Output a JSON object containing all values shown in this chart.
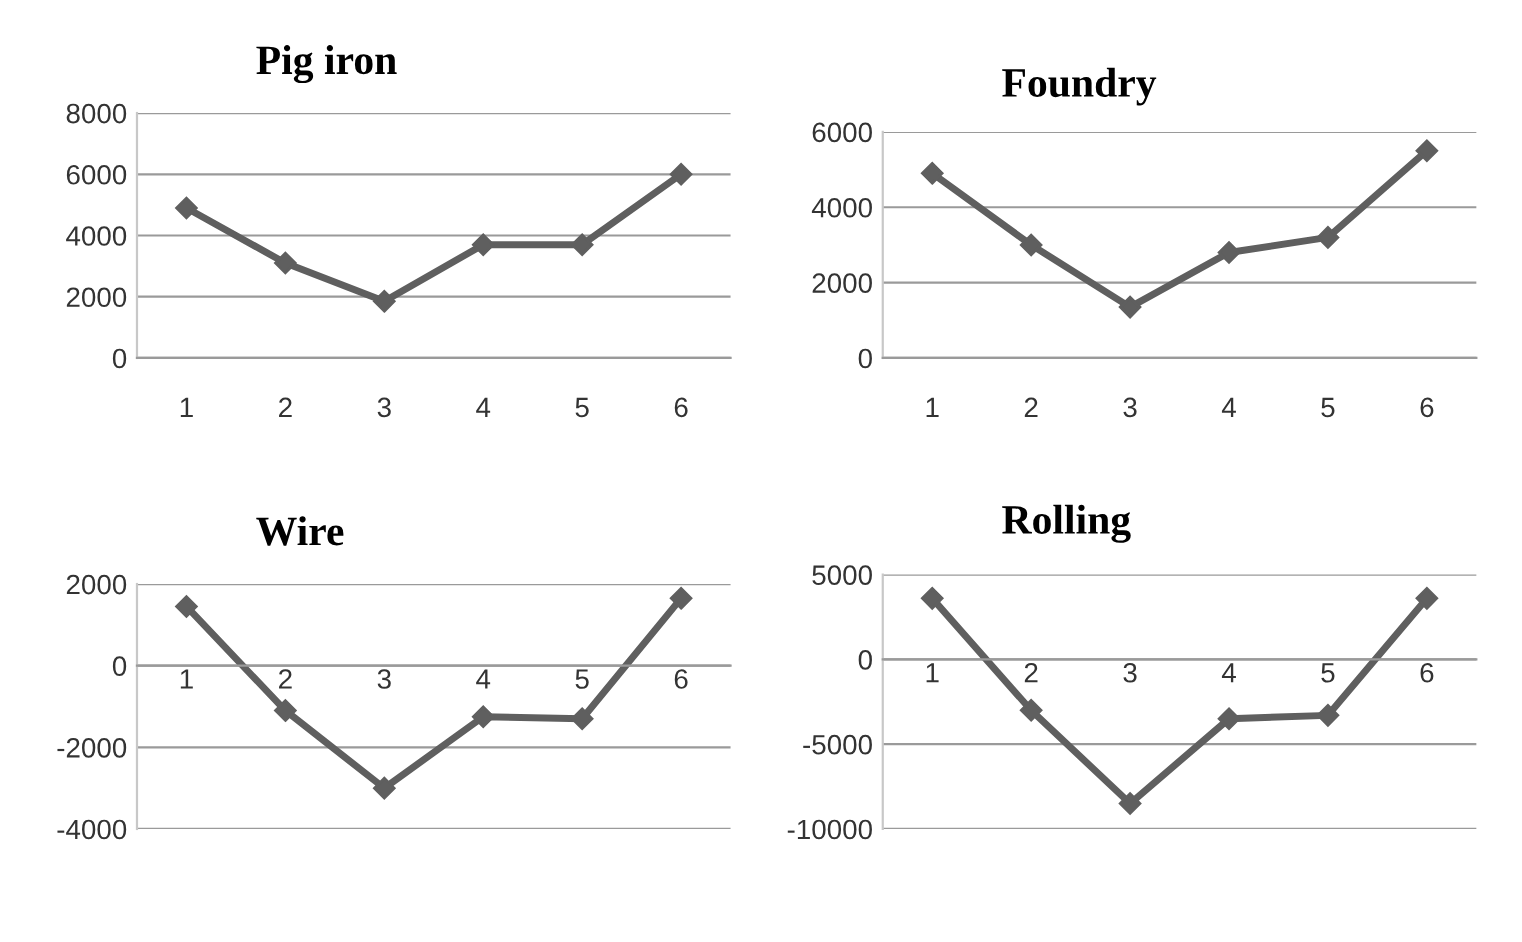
{
  "chart_data": [
    {
      "type": "line",
      "title": "Pig iron",
      "categories": [
        "1",
        "2",
        "3",
        "4",
        "5",
        "6"
      ],
      "series": [
        {
          "color": "#5f5f5f",
          "values": [
            4900,
            3100,
            1850,
            3700,
            3700,
            6000
          ]
        }
      ],
      "ylim": [
        0,
        8000
      ],
      "yticks": [
        0,
        2000,
        4000,
        6000,
        8000
      ],
      "grid": "y",
      "marker": "diamond",
      "line_style": "solid"
    },
    {
      "type": "line",
      "title": "Foundry",
      "categories": [
        "1",
        "2",
        "3",
        "4",
        "5",
        "6"
      ],
      "series": [
        {
          "color": "#5f5f5f",
          "values": [
            4900,
            3000,
            1350,
            2800,
            3200,
            5500
          ]
        }
      ],
      "ylim": [
        0,
        6000
      ],
      "yticks": [
        0,
        2000,
        4000,
        6000
      ],
      "grid": "y",
      "marker": "diamond",
      "line_style": "solid"
    },
    {
      "type": "line",
      "title": "Wire",
      "categories": [
        "1",
        "2",
        "3",
        "4",
        "5",
        "6"
      ],
      "series": [
        {
          "color": "#5f5f5f",
          "values": [
            1450,
            -1100,
            -3000,
            -1250,
            -1300,
            1650
          ]
        }
      ],
      "ylim": [
        -4000,
        2000
      ],
      "yticks": [
        -4000,
        -2000,
        0,
        2000
      ],
      "grid": "y",
      "marker": "diamond",
      "line_style": "solid"
    },
    {
      "type": "line",
      "title": "Rolling",
      "categories": [
        "1",
        "2",
        "3",
        "4",
        "5",
        "6"
      ],
      "series": [
        {
          "color": "#5f5f5f",
          "values": [
            3600,
            -3000,
            -8500,
            -3500,
            -3300,
            3600
          ]
        }
      ],
      "ylim": [
        -10000,
        5000
      ],
      "yticks": [
        -10000,
        -5000,
        0,
        5000
      ],
      "grid": "y",
      "marker": "diamond",
      "line_style": "solid"
    }
  ]
}
